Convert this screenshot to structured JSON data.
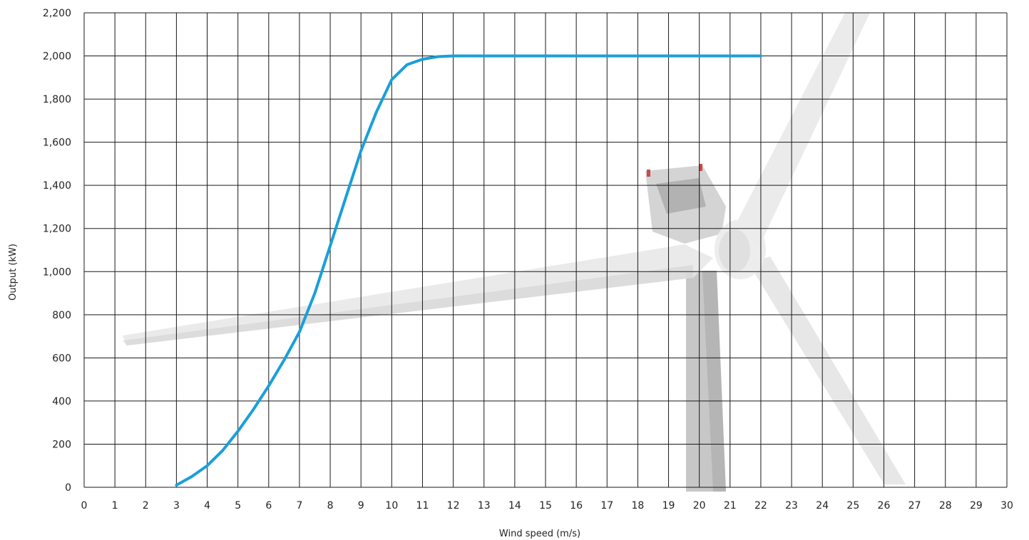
{
  "chart_data": {
    "type": "line",
    "title": "",
    "xlabel": "Wind speed (m/s)",
    "ylabel": "Output (kW)",
    "xlim": [
      0,
      30
    ],
    "ylim": [
      0,
      2200
    ],
    "x_ticks": [
      0,
      1,
      2,
      3,
      4,
      5,
      6,
      7,
      8,
      9,
      10,
      11,
      12,
      13,
      14,
      15,
      16,
      17,
      18,
      19,
      20,
      21,
      22,
      23,
      24,
      25,
      26,
      27,
      28,
      29,
      30
    ],
    "y_ticks": [
      0,
      200,
      400,
      600,
      800,
      1000,
      1200,
      1400,
      1600,
      1800,
      2000,
      2200
    ],
    "x_tick_labels": [
      "0",
      "1",
      "2",
      "3",
      "4",
      "5",
      "6",
      "7",
      "8",
      "9",
      "10",
      "11",
      "12",
      "13",
      "14",
      "15",
      "16",
      "17",
      "18",
      "19",
      "20",
      "21",
      "22",
      "23",
      "24",
      "25",
      "26",
      "27",
      "28",
      "29",
      "30"
    ],
    "y_tick_labels": [
      "0",
      "200",
      "400",
      "600",
      "800",
      "1,000",
      "1,200",
      "1,400",
      "1,600",
      "1,800",
      "2,000",
      "2,200"
    ],
    "grid": true,
    "series": [
      {
        "color": "#1a9fd9",
        "x": [
          3,
          3.5,
          4,
          4.5,
          5,
          5.5,
          6,
          6.5,
          7,
          7.5,
          8,
          8.5,
          9,
          9.5,
          10,
          10.5,
          11,
          11.5,
          12,
          13,
          14,
          15,
          16,
          17,
          18,
          19,
          20,
          21,
          22
        ],
        "y": [
          10,
          50,
          100,
          170,
          260,
          360,
          470,
          590,
          720,
          900,
          1120,
          1340,
          1560,
          1740,
          1890,
          1960,
          1985,
          1997,
          2000,
          2000,
          2000,
          2000,
          2000,
          2000,
          2000,
          2000,
          2000,
          2000,
          2000
        ]
      }
    ]
  }
}
